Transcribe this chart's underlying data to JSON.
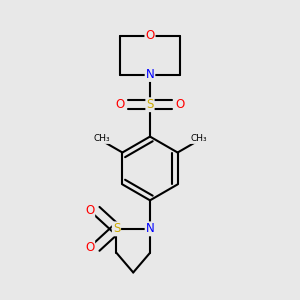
{
  "background_color": "#e8e8e8",
  "bond_color": "#000000",
  "line_width": 1.5,
  "atom_colors": {
    "O": "#ff0000",
    "N": "#0000ff",
    "S": "#ccaa00",
    "C": "#000000"
  },
  "font_size_atom": 8.5,
  "fig_width": 3.0,
  "fig_height": 3.0,
  "dpi": 100
}
